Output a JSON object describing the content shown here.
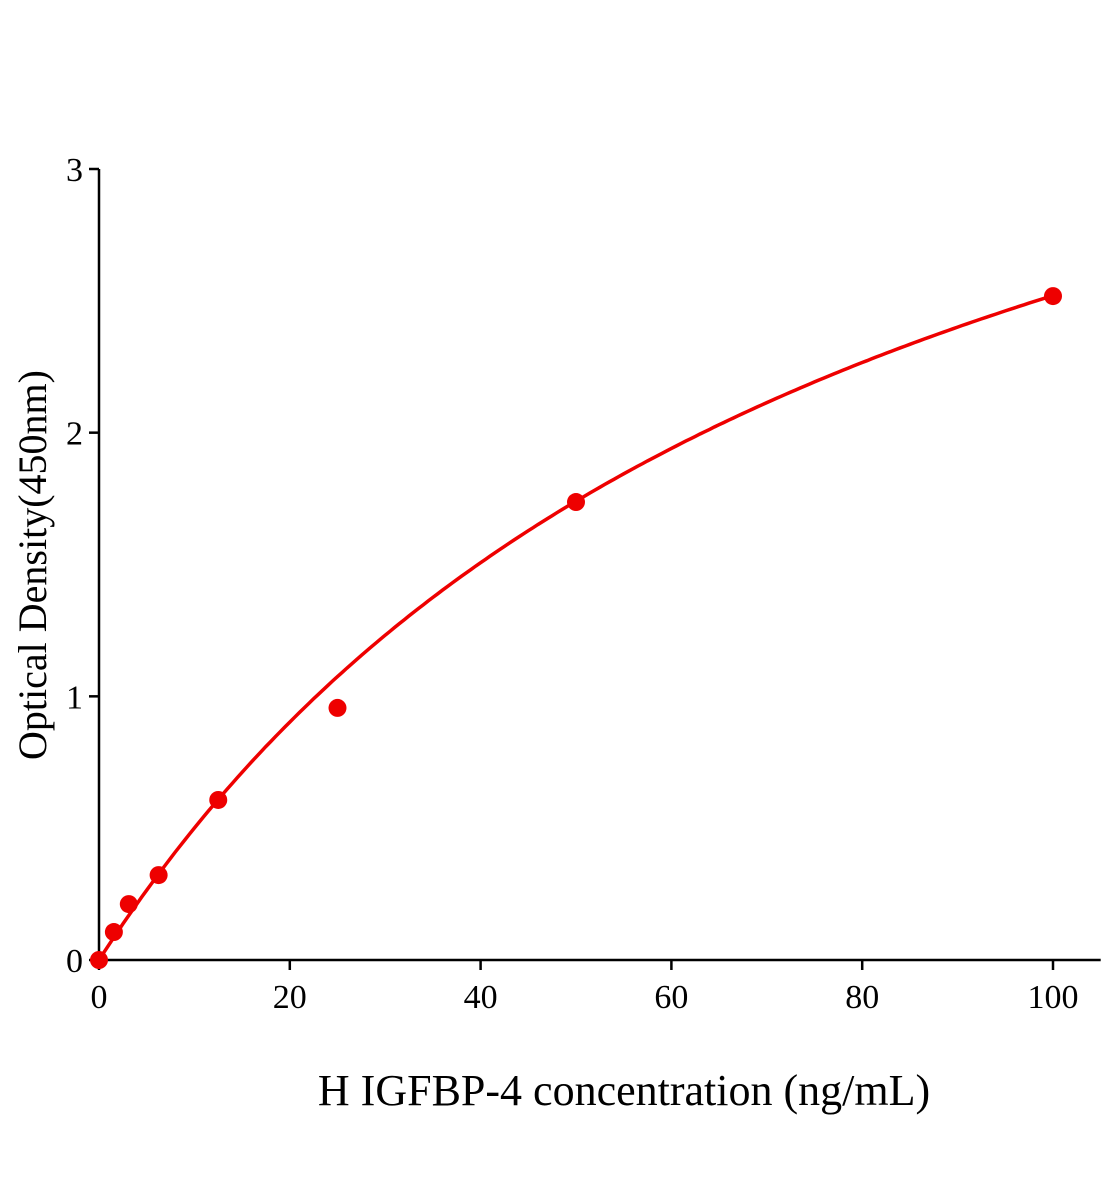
{
  "chart_data": {
    "type": "scatter",
    "title": "",
    "xlabel": "H IGFBP-4 concentration (ng/mL)",
    "ylabel": "Optical Density(450nm)",
    "xlim": [
      0,
      105
    ],
    "ylim": [
      0,
      3
    ],
    "x_ticks": [
      0,
      20,
      40,
      60,
      80,
      100
    ],
    "y_ticks": [
      0,
      1,
      2,
      3
    ],
    "grid": false,
    "color": "#ee0000",
    "points": [
      {
        "x": 0,
        "y": 0.0
      },
      {
        "x": 1.56,
        "y": 0.106
      },
      {
        "x": 3.125,
        "y": 0.212
      },
      {
        "x": 6.25,
        "y": 0.322
      },
      {
        "x": 12.5,
        "y": 0.607
      },
      {
        "x": 25,
        "y": 0.956
      },
      {
        "x": 50,
        "y": 1.737
      },
      {
        "x": 100,
        "y": 2.518
      }
    ],
    "fit_curve": {
      "model": "y = a*x/(b+x)",
      "a": 4.566,
      "b": 81.2
    }
  }
}
